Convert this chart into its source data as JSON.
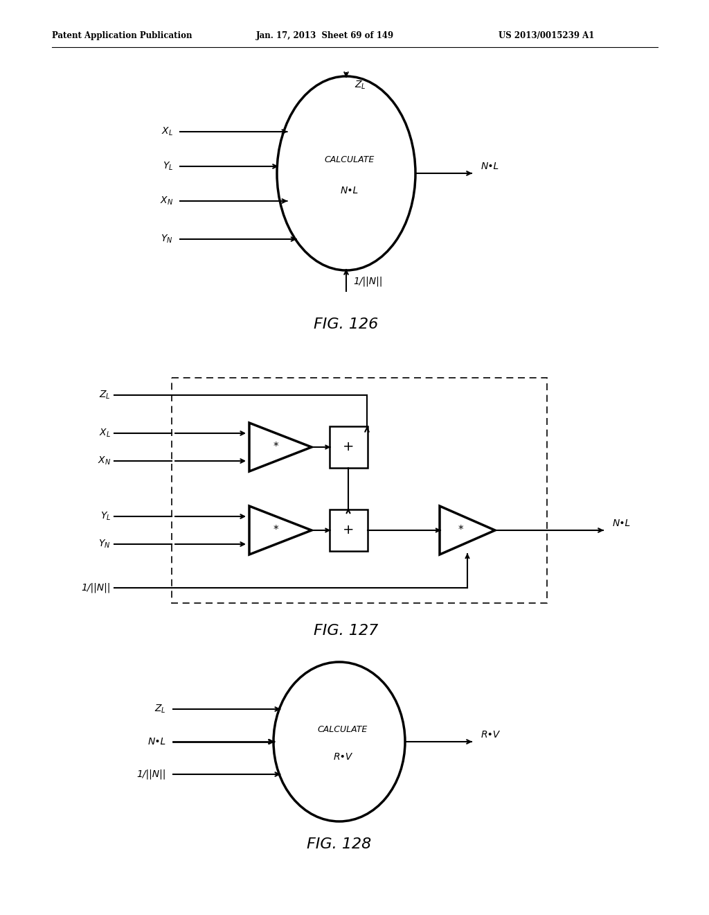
{
  "bg_color": "#ffffff",
  "header_left": "Patent Application Publication",
  "header_mid": "Jan. 17, 2013  Sheet 69 of 149",
  "header_right": "US 2013/0015239 A1",
  "fig126_label": "FIG. 126",
  "fig127_label": "FIG. 127",
  "fig128_label": "FIG. 128"
}
